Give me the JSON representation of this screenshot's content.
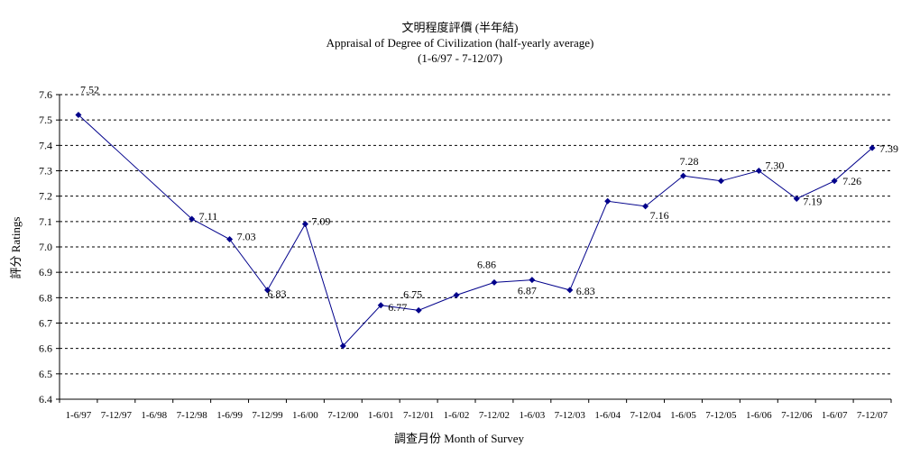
{
  "chart_data": {
    "type": "line",
    "title": "文明程度評價 (半年結)",
    "subtitle": "Appraisal of Degree of Civilization (half-yearly average)",
    "period": "(1-6/97 - 7-12/07)",
    "xlabel": "調查月份 Month of Survey",
    "ylabel": "評分 Ratings",
    "ylim": [
      6.4,
      7.6
    ],
    "ytick_step": 0.1,
    "grid": "horizontal-dashed",
    "legend": "none",
    "line_color": "#00008B",
    "marker_color": "#00008B",
    "categories": [
      "1-6/97",
      "7-12/97",
      "1-6/98",
      "7-12/98",
      "1-6/99",
      "7-12/99",
      "1-6/00",
      "7-12/00",
      "1-6/01",
      "7-12/01",
      "1-6/02",
      "7-12/02",
      "1-6/03",
      "7-12/03",
      "1-6/04",
      "7-12/04",
      "1-6/05",
      "7-12/05",
      "1-6/06",
      "7-12/06",
      "1-6/07",
      "7-12/07"
    ],
    "series": [
      {
        "values": [
          7.52,
          null,
          null,
          7.11,
          7.03,
          6.83,
          7.09,
          6.61,
          6.77,
          6.75,
          6.81,
          6.86,
          6.87,
          6.83,
          7.18,
          7.16,
          7.28,
          7.26,
          7.3,
          7.19,
          7.26,
          7.39
        ],
        "labels": [
          "7.52",
          null,
          null,
          "7.11",
          "7.03",
          "6.83",
          "7.09",
          null,
          "6.77",
          "6.75",
          null,
          "6.86",
          "6.87",
          "6.83",
          null,
          "7.16",
          "7.28",
          null,
          "7.30",
          "7.19",
          "7.26",
          "7.39"
        ]
      }
    ]
  }
}
